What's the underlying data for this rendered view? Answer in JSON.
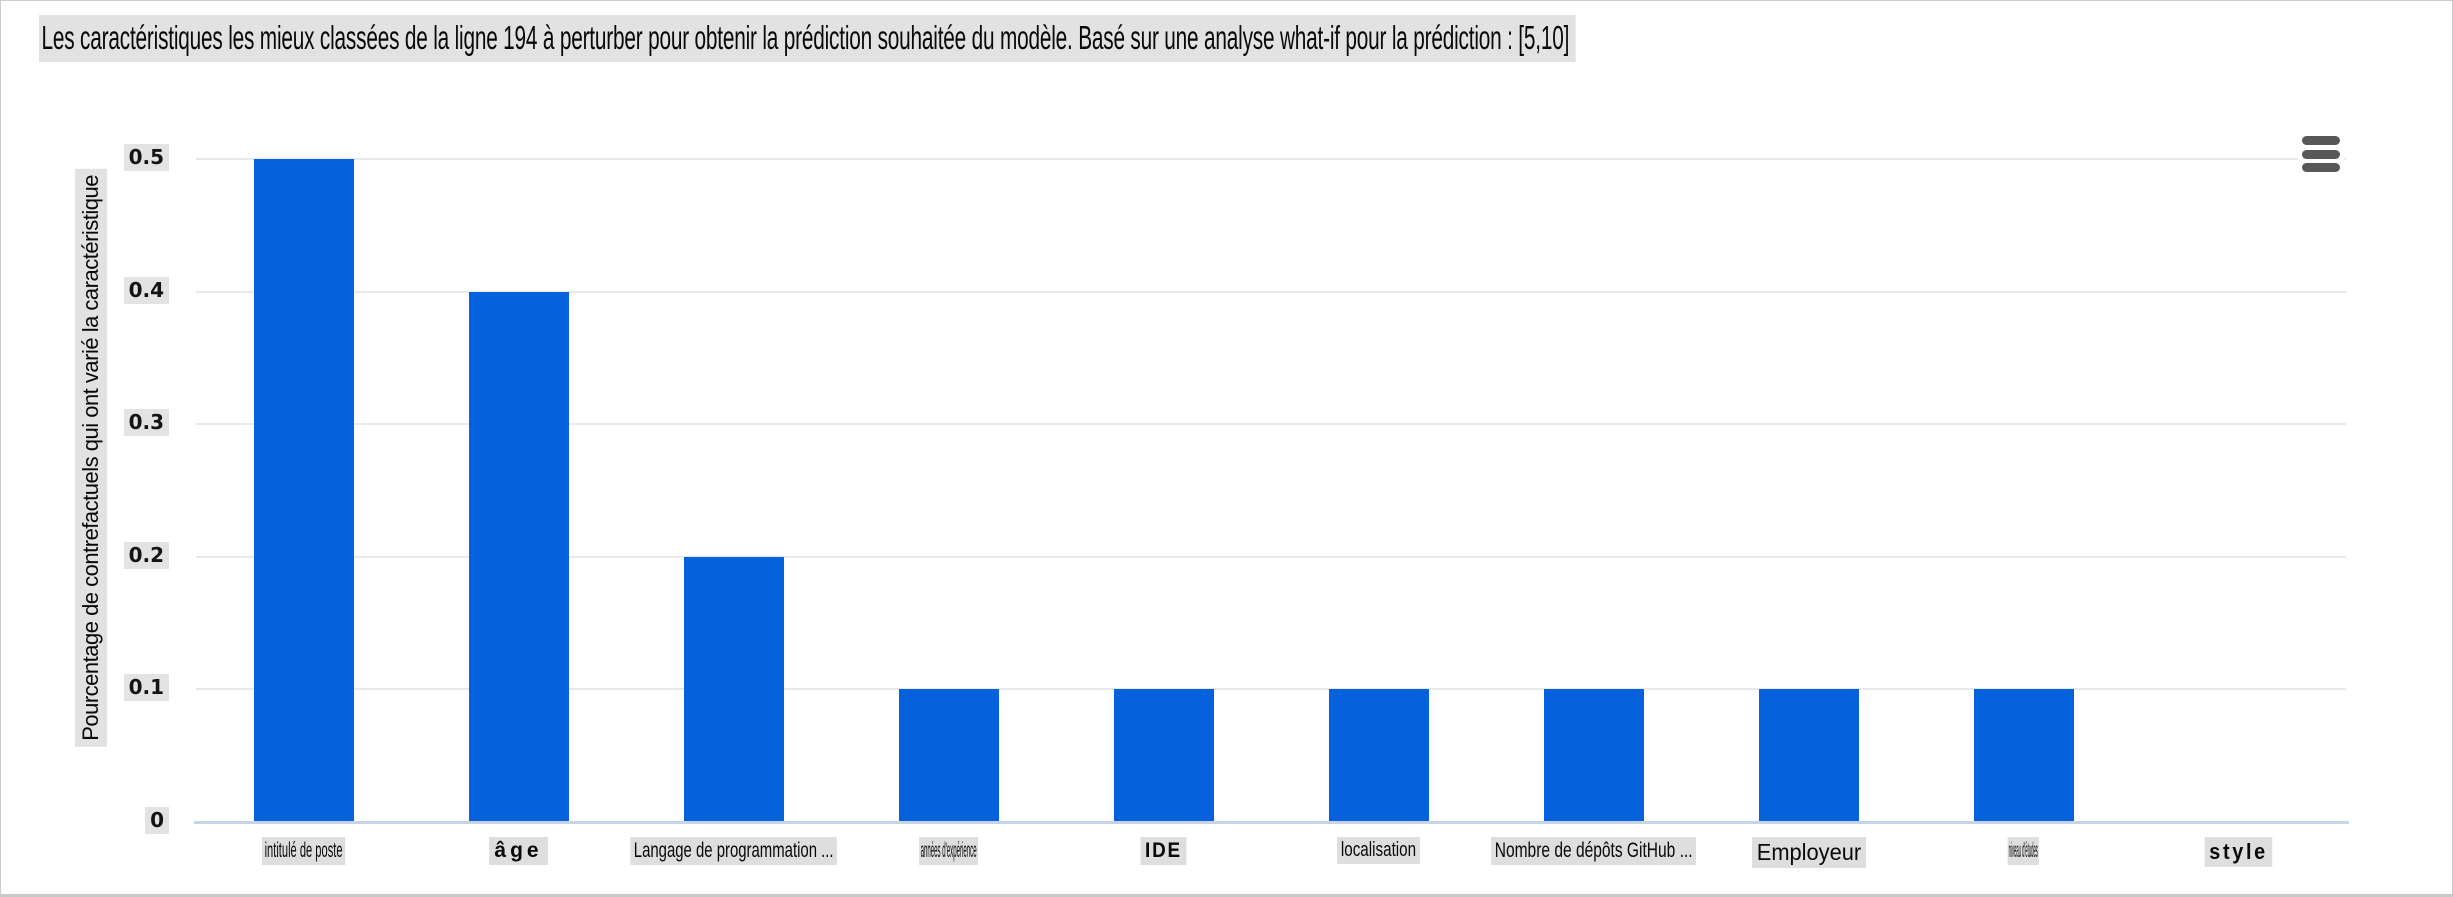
{
  "colors": {
    "bar": "#0562dc",
    "gridline": "#e9e9e9",
    "axis_line": "#c7d3e8",
    "label_highlight": "#e2e2e2",
    "menu_icon": "#585858",
    "text": "#090909"
  },
  "toolbar": {
    "menu_icon": "hamburger-menu"
  },
  "chart_data": {
    "type": "bar",
    "title": "Les caractéristiques les mieux classées de la ligne 194 à perturber pour obtenir la prédiction souhaitée du modèle. Basé sur une analyse what-if pour la prédiction : [5,10]",
    "xlabel": "",
    "ylabel": "Pourcentage de contrefactuels qui ont varié la caractéristique",
    "categories": [
      "intitulé de poste",
      "âge",
      "Langage de programmation ...",
      "années d'expérience",
      "IDE",
      "localisation",
      "Nombre de dépôts GitHub ...",
      "Employeur",
      "niveau d'études",
      "style"
    ],
    "values": [
      0.5,
      0.4,
      0.2,
      0.1,
      0.1,
      0.1,
      0.1,
      0.1,
      0.1,
      0
    ],
    "yticks": [
      0,
      0.1,
      0.2,
      0.3,
      0.4,
      0.5
    ],
    "ylim": [
      0,
      0.55
    ],
    "grid": true,
    "legend": false,
    "bar_color": "#0562dc",
    "label_styles": [
      {
        "fs": 21,
        "sx": 0.53,
        "b": false,
        "ls": 0
      },
      {
        "fs": 21,
        "sx": 1.0,
        "b": true,
        "ls": 4
      },
      {
        "fs": 21,
        "sx": 0.71,
        "b": false,
        "ls": 0
      },
      {
        "fs": 21,
        "sx": 0.29,
        "b": false,
        "ls": 0
      },
      {
        "fs": 21,
        "sx": 0.9,
        "b": true,
        "ls": 2
      },
      {
        "fs": 20,
        "sx": 0.76,
        "b": false,
        "ls": 0
      },
      {
        "fs": 21,
        "sx": 0.74,
        "b": false,
        "ls": 0
      },
      {
        "fs": 23,
        "sx": 0.95,
        "b": false,
        "ls": 0
      },
      {
        "fs": 21,
        "sx": 0.2,
        "b": false,
        "ls": 0
      },
      {
        "fs": 22,
        "sx": 0.9,
        "b": true,
        "ls": 3
      }
    ]
  }
}
